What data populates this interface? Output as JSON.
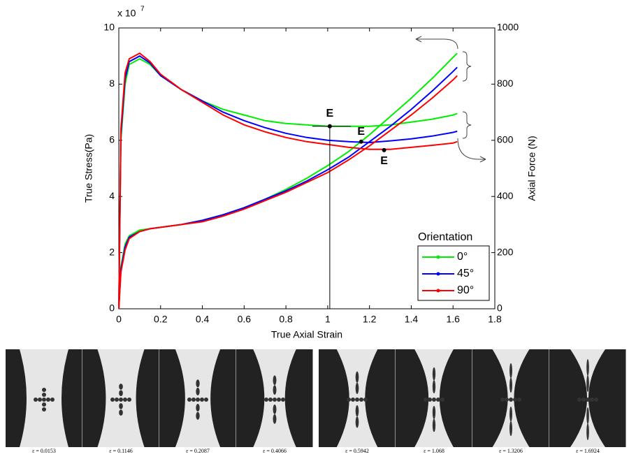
{
  "chart_data": {
    "type": "line",
    "xlabel": "True Axial Strain",
    "ylabel": "True Stress(Pa)",
    "y2label": "Axial Force (N)",
    "yscale_base": "x 10",
    "yscale_exponent": "7",
    "legend_title": "Orientation",
    "legend": "lower right",
    "x": [
      0,
      0.01,
      0.03,
      0.05,
      0.1,
      0.15,
      0.2,
      0.3,
      0.4,
      0.5,
      0.6,
      0.7,
      0.8,
      0.9,
      1.0,
      1.1,
      1.2,
      1.3,
      1.4,
      1.5,
      1.6,
      1.62
    ],
    "series": [
      {
        "name": "0°",
        "color": "#00ee00",
        "values": [
          0,
          1.5,
          2.3,
          2.6,
          2.8,
          2.85,
          2.9,
          3.0,
          3.15,
          3.35,
          3.6,
          3.9,
          4.25,
          4.65,
          5.1,
          5.6,
          6.2,
          6.85,
          7.5,
          8.2,
          8.95,
          9.1
        ],
        "force_values": [
          0,
          600,
          800,
          870,
          890,
          870,
          830,
          780,
          740,
          710,
          690,
          670,
          660,
          655,
          650,
          650,
          650,
          655,
          665,
          675,
          690,
          695
        ]
      },
      {
        "name": "45°",
        "color": "#0000ff",
        "values": [
          0,
          1.4,
          2.2,
          2.55,
          2.75,
          2.85,
          2.9,
          3.0,
          3.15,
          3.35,
          3.6,
          3.9,
          4.2,
          4.55,
          4.95,
          5.4,
          5.95,
          6.5,
          7.1,
          7.75,
          8.45,
          8.6
        ],
        "force_values": [
          0,
          620,
          820,
          880,
          900,
          875,
          830,
          780,
          740,
          700,
          670,
          645,
          625,
          610,
          600,
          595,
          592,
          598,
          605,
          615,
          628,
          632
        ]
      },
      {
        "name": "90°",
        "color": "#ff0000",
        "values": [
          0,
          1.3,
          2.1,
          2.5,
          2.75,
          2.85,
          2.9,
          3.0,
          3.1,
          3.3,
          3.55,
          3.85,
          4.15,
          4.5,
          4.85,
          5.3,
          5.8,
          6.35,
          6.9,
          7.5,
          8.15,
          8.3
        ],
        "force_values": [
          0,
          640,
          840,
          890,
          910,
          880,
          835,
          780,
          735,
          690,
          655,
          630,
          610,
          595,
          585,
          575,
          568,
          568,
          575,
          582,
          590,
          595
        ]
      }
    ],
    "force_axis": "y2",
    "annotations": [
      {
        "text": "E",
        "x": 1.01,
        "y": 650
      },
      {
        "text": "E",
        "x": 1.16,
        "y": 595
      },
      {
        "text": "E",
        "x": 1.27,
        "y": 565
      }
    ],
    "xlim": [
      0,
      1.8
    ],
    "xticks": [
      0,
      0.2,
      0.4,
      0.6,
      0.8,
      1,
      1.2,
      1.4,
      1.6,
      1.8
    ],
    "ylim": [
      0,
      10
    ],
    "yticks": [
      0,
      2,
      4,
      6,
      8,
      10
    ],
    "y2lim": [
      0,
      1000
    ],
    "y2ticks": [
      0,
      200,
      400,
      600,
      800,
      1000
    ]
  },
  "strip": {
    "captions": [
      "ε = 0.0153",
      "ε = 0.1146",
      "ε = 0.2087",
      "ε = 0.4066",
      "ε = 0.5942",
      "ε = 1.068",
      "ε = 1.3206",
      "ε = 1.6924"
    ]
  }
}
